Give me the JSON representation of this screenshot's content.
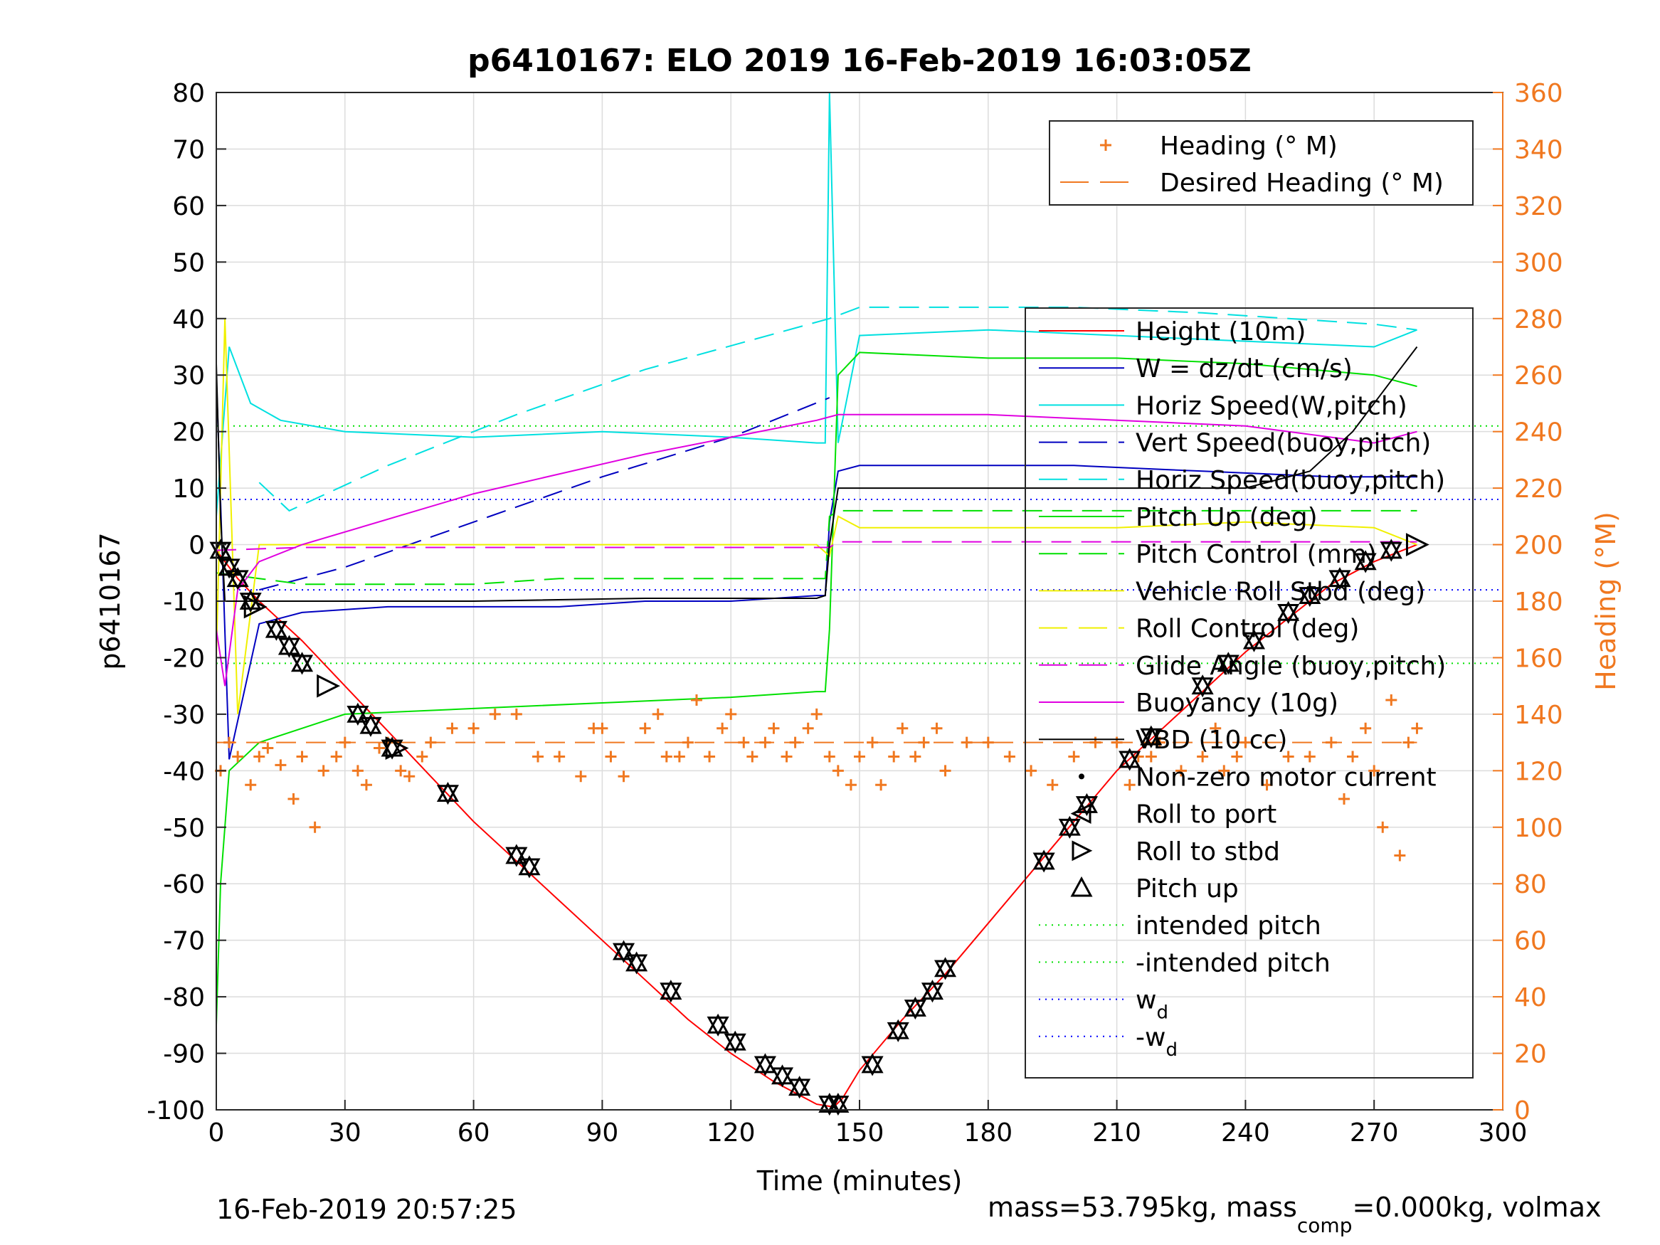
{
  "chart_data": {
    "type": "line",
    "title": "p6410167: ELO 2019 16-Feb-2019 16:03:05Z",
    "xlabel": "Time (minutes)",
    "ylabel": "p6410167",
    "y2label": "Heading (°M)",
    "xlim": [
      0,
      300
    ],
    "ylim": [
      -100,
      80
    ],
    "y2lim": [
      0,
      360
    ],
    "xticks": [
      "0",
      "30",
      "60",
      "90",
      "120",
      "150",
      "180",
      "210",
      "240",
      "270",
      "300"
    ],
    "yticks": [
      "80",
      "70",
      "60",
      "50",
      "40",
      "30",
      "20",
      "10",
      "0",
      "-10",
      "-20",
      "-30",
      "-40",
      "-50",
      "-60",
      "-70",
      "-80",
      "-90",
      "-100"
    ],
    "y2ticks": [
      "360",
      "340",
      "320",
      "300",
      "280",
      "260",
      "240",
      "220",
      "200",
      "180",
      "160",
      "140",
      "120",
      "100",
      "80",
      "60",
      "40",
      "20",
      "0"
    ],
    "grid": true,
    "footer_left": "16-Feb-2019 20:57:25",
    "footer_right": "mass=53.795kg, mass",
    "footer_sub": "comp",
    "footer_right2": "=0.000kg, volmax",
    "colors": {
      "heading": "#f07820",
      "height": "#ff0000",
      "w": "#0000c0",
      "horiz": "#00e0e0",
      "pitch": "#00e000",
      "roll": "#f0f000",
      "glide": "#e000e0",
      "buoy": "#e000e0",
      "vbd": "#000000"
    },
    "legend_heading": [
      {
        "name": "Heading (° M)",
        "style": "plus"
      },
      {
        "name": "Desired Heading (° M)",
        "style": "dash"
      }
    ],
    "legend_main": [
      {
        "name": "Height (10m)",
        "color": "#ff0000",
        "style": "solid"
      },
      {
        "name": "W = dz/dt (cm/s)",
        "color": "#0000c0",
        "style": "solid"
      },
      {
        "name": "Horiz Speed(W,pitch)",
        "color": "#00e0e0",
        "style": "solid"
      },
      {
        "name": "Vert Speed(buoy,pitch)",
        "color": "#0000c0",
        "style": "dash"
      },
      {
        "name": "Horiz Speed(buoy,pitch)",
        "color": "#00e0e0",
        "style": "dash"
      },
      {
        "name": "Pitch Up (deg)",
        "color": "#00e000",
        "style": "solid"
      },
      {
        "name": "Pitch Control (mm)",
        "color": "#00e000",
        "style": "dash"
      },
      {
        "name": "Vehicle Roll Stbd (deg)",
        "color": "#f0f000",
        "style": "solid"
      },
      {
        "name": "Roll Control (deg)",
        "color": "#f0f000",
        "style": "dash"
      },
      {
        "name": "Glide Angle (buoy,pitch)",
        "color": "#e000e0",
        "style": "dash"
      },
      {
        "name": "Buoyancy (10g)",
        "color": "#e000e0",
        "style": "solid"
      },
      {
        "name": "VBD (10 cc)",
        "color": "#000000",
        "style": "solid"
      },
      {
        "name": "Non-zero motor current",
        "color": "#000000",
        "style": "dot"
      },
      {
        "name": "Roll to port",
        "color": "#000000",
        "style": "ltri"
      },
      {
        "name": "Roll to stbd",
        "color": "#000000",
        "style": "rtri"
      },
      {
        "name": "Pitch up",
        "color": "#000000",
        "style": "utri"
      },
      {
        "name": "intended pitch",
        "color": "#00e000",
        "style": "dotted"
      },
      {
        "name": "-intended pitch",
        "color": "#00e000",
        "style": "dotted"
      },
      {
        "name": "w",
        "sub": "d",
        "color": "#0000ff",
        "style": "dotted"
      },
      {
        "name": "-w",
        "sub": "d",
        "color": "#0000ff",
        "style": "dotted"
      }
    ],
    "series": [
      {
        "name": "Height (10m)",
        "x": [
          0,
          2,
          5,
          10,
          20,
          30,
          40,
          50,
          60,
          70,
          80,
          90,
          100,
          110,
          120,
          130,
          140,
          144,
          146,
          150,
          160,
          170,
          180,
          190,
          200,
          210,
          220,
          230,
          240,
          250,
          260,
          270,
          280
        ],
        "y": [
          -1,
          -3,
          -6,
          -10,
          -17,
          -25,
          -33,
          -41,
          -49,
          -56,
          -63,
          -70,
          -77,
          -84,
          -90,
          -95,
          -99,
          -99.5,
          -98,
          -93,
          -84,
          -76,
          -67,
          -58,
          -49,
          -40,
          -33,
          -26,
          -19,
          -13,
          -7,
          -3,
          0
        ]
      },
      {
        "name": "W = dz/dt (cm/s)",
        "x": [
          0,
          3,
          10,
          20,
          40,
          60,
          80,
          100,
          120,
          140,
          142,
          143,
          145,
          150,
          170,
          200,
          230,
          260,
          280
        ],
        "y": [
          30,
          -38,
          -14,
          -12,
          -11,
          -11,
          -11,
          -10,
          -10,
          -9,
          -9,
          4,
          13,
          14,
          14,
          14,
          13,
          12,
          12
        ]
      },
      {
        "name": "Horiz Speed(W,pitch)",
        "x": [
          0,
          3,
          8,
          15,
          30,
          60,
          90,
          120,
          140,
          142,
          143,
          145,
          150,
          180,
          210,
          240,
          270,
          280
        ],
        "y": [
          5,
          35,
          25,
          22,
          20,
          19,
          20,
          19,
          18,
          18,
          80,
          18,
          37,
          38,
          37,
          36,
          35,
          38
        ]
      },
      {
        "name": "Vert Speed(buoy,pitch)",
        "x": [
          10,
          30,
          60,
          90,
          120,
          143
        ],
        "y": [
          -8,
          -4,
          4,
          12,
          19,
          26
        ]
      },
      {
        "name": "Horiz Speed(buoy,pitch)",
        "x": [
          10,
          17,
          40,
          70,
          100,
          143,
          150,
          200,
          230,
          270,
          280
        ],
        "y": [
          11,
          6,
          14,
          23,
          31,
          40,
          42,
          42,
          41,
          39,
          38
        ]
      },
      {
        "name": "Pitch Up (deg)",
        "x": [
          0,
          1,
          3,
          10,
          30,
          60,
          90,
          120,
          140,
          142,
          143,
          145,
          150,
          180,
          210,
          240,
          270,
          280
        ],
        "y": [
          -85,
          -60,
          -40,
          -35,
          -30,
          -29,
          -28,
          -27,
          -26,
          -26,
          -15,
          30,
          34,
          33,
          33,
          32,
          30,
          28
        ]
      },
      {
        "name": "Pitch Control (mm)",
        "x": [
          0,
          10,
          20,
          40,
          60,
          80,
          100,
          120,
          142,
          143,
          145,
          200,
          280
        ],
        "y": [
          -5,
          -6,
          -7,
          -7,
          -7,
          -6,
          -6,
          -6,
          -6,
          5,
          6,
          6,
          6
        ]
      },
      {
        "name": "Vehicle Roll Stbd (deg)",
        "x": [
          0,
          2,
          5,
          10,
          30,
          60,
          90,
          120,
          140,
          143,
          145,
          150,
          180,
          210,
          240,
          270,
          280
        ],
        "y": [
          -20,
          40,
          -30,
          0,
          0,
          0,
          0,
          0,
          0,
          -2,
          5,
          3,
          3,
          3,
          4,
          3,
          0
        ]
      },
      {
        "name": "Glide Angle (buoy,pitch)",
        "x": [
          0,
          20,
          60,
          100,
          143,
          145,
          200,
          280
        ],
        "y": [
          -1,
          -0.5,
          -0.5,
          -0.5,
          -0.5,
          0.5,
          0.5,
          0.5
        ]
      },
      {
        "name": "Buoyancy (10g)",
        "x": [
          0,
          2,
          5,
          10,
          20,
          60,
          100,
          140,
          145,
          180,
          210,
          240,
          270,
          280
        ],
        "y": [
          -15,
          -25,
          -8,
          -3,
          0,
          9,
          16,
          22,
          23,
          23,
          22,
          21,
          18,
          20
        ]
      },
      {
        "name": "VBD (10 cc)",
        "x": [
          0,
          1,
          2,
          5,
          20,
          60,
          100,
          140,
          142,
          143,
          145,
          150,
          180,
          210,
          240,
          255,
          265,
          275,
          280
        ],
        "y": [
          32,
          5,
          -10,
          -10,
          -10,
          -10,
          -9.5,
          -9.5,
          -9,
          0,
          10,
          10,
          10,
          10,
          10,
          13,
          20,
          30,
          35
        ]
      }
    ],
    "heading": {
      "x": [
        1,
        3,
        5,
        8,
        10,
        12,
        15,
        18,
        20,
        23,
        25,
        28,
        30,
        33,
        35,
        38,
        40,
        43,
        45,
        48,
        50,
        55,
        60,
        65,
        70,
        75,
        80,
        85,
        88,
        90,
        92,
        95,
        100,
        103,
        105,
        108,
        110,
        112,
        115,
        118,
        120,
        123,
        125,
        128,
        130,
        133,
        135,
        138,
        140,
        143,
        145,
        148,
        150,
        153,
        155,
        158,
        160,
        163,
        165,
        168,
        170,
        175,
        180,
        185,
        190,
        195,
        200,
        205,
        210,
        213,
        215,
        218,
        220,
        225,
        230,
        233,
        235,
        238,
        240,
        245,
        250,
        255,
        260,
        263,
        265,
        268,
        270,
        272,
        274,
        276,
        278,
        280
      ],
      "y": [
        120,
        130,
        125,
        115,
        125,
        128,
        122,
        110,
        125,
        100,
        120,
        125,
        130,
        120,
        115,
        128,
        130,
        120,
        118,
        125,
        130,
        135,
        135,
        140,
        140,
        125,
        125,
        118,
        135,
        135,
        125,
        118,
        135,
        140,
        125,
        125,
        130,
        145,
        125,
        135,
        140,
        130,
        125,
        130,
        135,
        125,
        130,
        135,
        140,
        125,
        120,
        115,
        125,
        130,
        115,
        125,
        135,
        125,
        130,
        135,
        120,
        130,
        130,
        125,
        120,
        115,
        125,
        130,
        130,
        115,
        125,
        125,
        130,
        120,
        125,
        135,
        120,
        125,
        130,
        115,
        125,
        125,
        130,
        110,
        125,
        135,
        120,
        100,
        145,
        90,
        130,
        135
      ]
    },
    "desired_heading": {
      "x": [
        0,
        280
      ],
      "y": [
        130,
        130
      ]
    },
    "wd": 8,
    "intended_pitch": 21,
    "markers_utri": [
      [
        1,
        -1
      ],
      [
        3,
        -4
      ],
      [
        5,
        -6
      ],
      [
        8,
        -10
      ],
      [
        14,
        -15
      ],
      [
        17,
        -18
      ],
      [
        20,
        -21
      ],
      [
        33,
        -30
      ],
      [
        36,
        -32
      ],
      [
        41,
        -36
      ],
      [
        54,
        -44
      ],
      [
        70,
        -55
      ],
      [
        73,
        -57
      ],
      [
        95,
        -72
      ],
      [
        98,
        -74
      ],
      [
        106,
        -79
      ],
      [
        117,
        -85
      ],
      [
        121,
        -88
      ],
      [
        128,
        -92
      ],
      [
        132,
        -94
      ],
      [
        136,
        -96
      ],
      [
        143,
        -99
      ],
      [
        145,
        -99
      ],
      [
        153,
        -92
      ],
      [
        159,
        -86
      ],
      [
        163,
        -82
      ],
      [
        167,
        -79
      ],
      [
        170,
        -75
      ],
      [
        193,
        -56
      ],
      [
        199,
        -50
      ],
      [
        203,
        -46
      ],
      [
        213,
        -38
      ],
      [
        218,
        -34
      ],
      [
        230,
        -25
      ],
      [
        236,
        -21
      ],
      [
        242,
        -17
      ],
      [
        250,
        -12
      ],
      [
        255,
        -9
      ],
      [
        262,
        -6
      ],
      [
        268,
        -3
      ],
      [
        274,
        -1
      ]
    ],
    "markers_rtri": [
      [
        26,
        -25
      ],
      [
        9,
        -11
      ],
      [
        280,
        0
      ],
      [
        42,
        -36
      ]
    ]
  }
}
